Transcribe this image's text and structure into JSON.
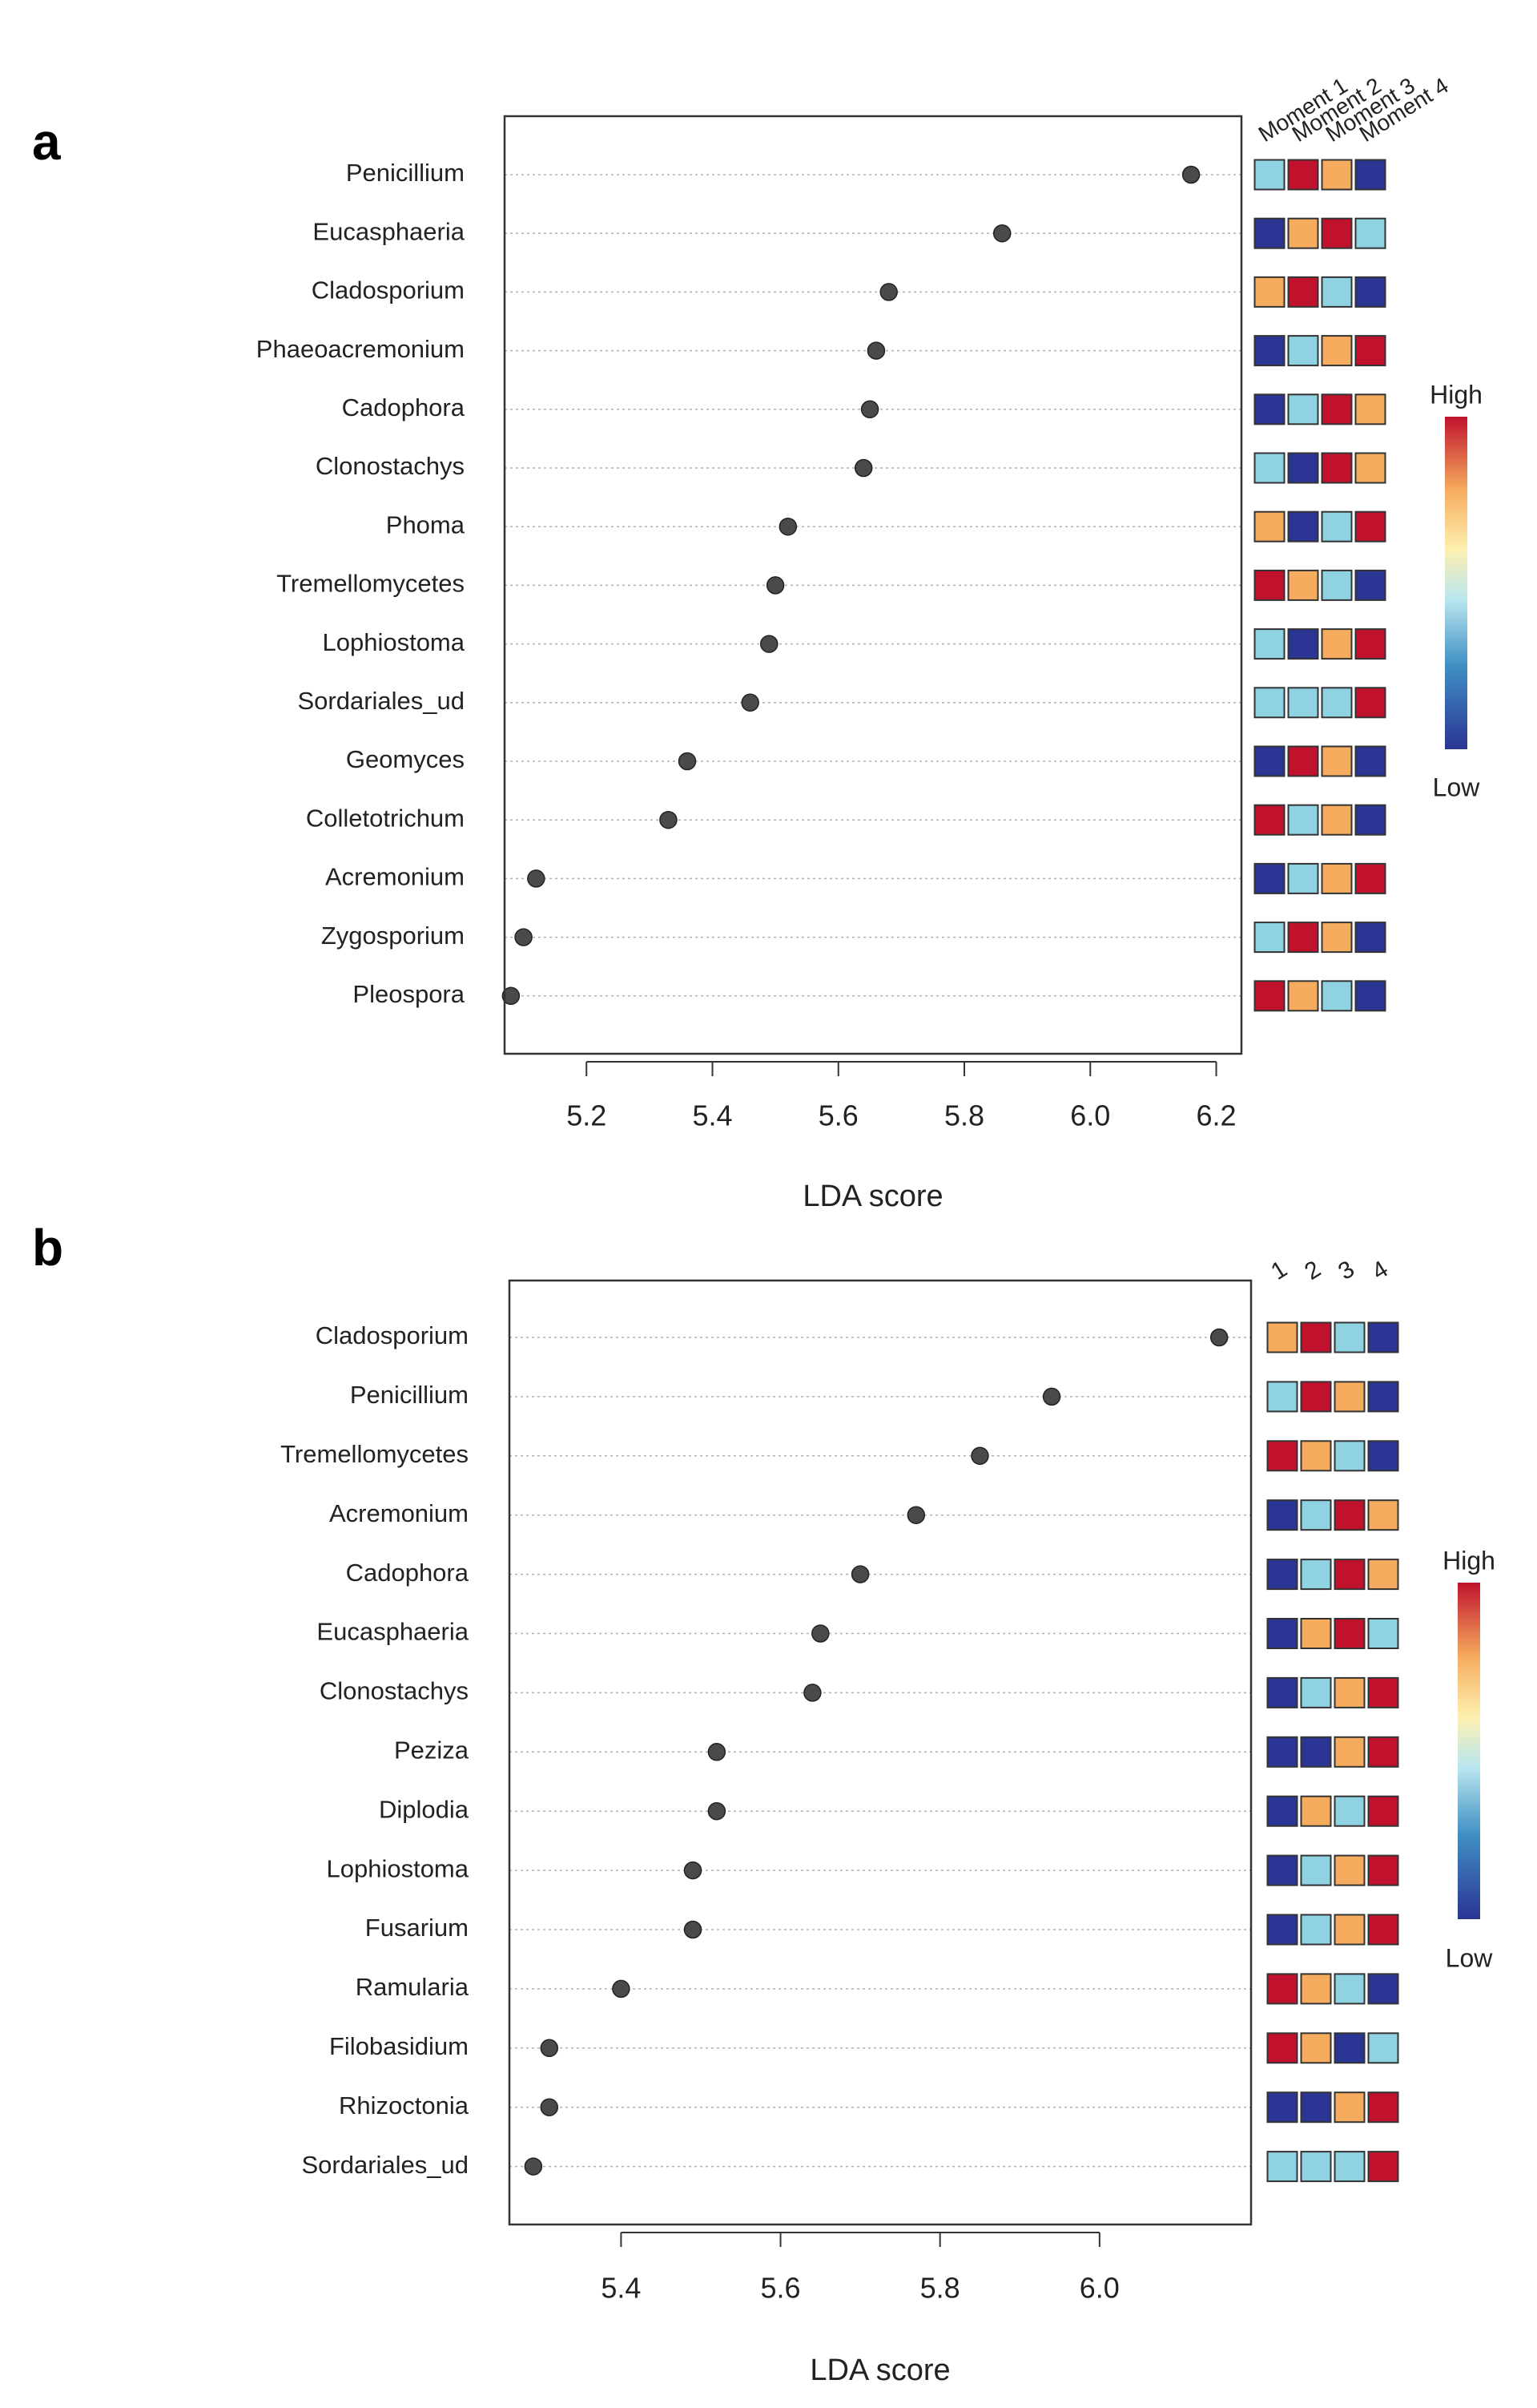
{
  "chart_data": [
    {
      "type": "scatter",
      "panel": "a",
      "xlabel": "LDA score",
      "xlim": [
        5.07,
        6.24
      ],
      "xticks": [
        5.2,
        5.4,
        5.6,
        5.8,
        6.0,
        6.2
      ],
      "xtick_labels": [
        "5.2",
        "5.4",
        "5.6",
        "5.8",
        "6.0",
        "6.2"
      ],
      "categories": [
        "Penicillium",
        "Eucasphaeria",
        "Cladosporium",
        "Phaeoacremonium",
        "Cadophora",
        "Clonostachys",
        "Phoma",
        "Tremellomycetes",
        "Lophiostoma",
        "Sordariales_ud",
        "Geomyces",
        "Colletotrichum",
        "Acremonium",
        "Zygosporium",
        "Pleospora"
      ],
      "values": [
        6.16,
        5.86,
        5.68,
        5.66,
        5.65,
        5.64,
        5.52,
        5.5,
        5.49,
        5.46,
        5.36,
        5.33,
        5.12,
        5.1,
        5.08
      ],
      "heatmap_columns": [
        "Moment 1",
        "Moment 2",
        "Moment 3",
        "Moment 4"
      ],
      "heatmap_levels": [
        [
          2,
          4,
          3,
          1
        ],
        [
          1,
          3,
          4,
          2
        ],
        [
          3,
          4,
          2,
          1
        ],
        [
          1,
          2,
          3,
          4
        ],
        [
          1,
          2,
          4,
          3
        ],
        [
          2,
          1,
          4,
          3
        ],
        [
          3,
          1,
          2,
          4
        ],
        [
          4,
          3,
          2,
          1
        ],
        [
          2,
          1,
          3,
          4
        ],
        [
          2,
          2,
          2,
          4
        ],
        [
          1,
          4,
          3,
          1
        ],
        [
          4,
          2,
          3,
          1
        ],
        [
          1,
          2,
          3,
          4
        ],
        [
          2,
          4,
          3,
          1
        ],
        [
          4,
          3,
          2,
          1
        ]
      ],
      "color_legend": {
        "high": "High",
        "low": "Low"
      }
    },
    {
      "type": "scatter",
      "panel": "b",
      "xlabel": "LDA score",
      "xlim": [
        5.26,
        6.19
      ],
      "xticks": [
        5.4,
        5.6,
        5.8,
        6.0
      ],
      "xtick_labels": [
        "5.4",
        "5.6",
        "5.8",
        "6.0"
      ],
      "categories": [
        "Cladosporium",
        "Penicillium",
        "Tremellomycetes",
        "Acremonium",
        "Cadophora",
        "Eucasphaeria",
        "Clonostachys",
        "Peziza",
        "Diplodia",
        "Lophiostoma",
        "Fusarium",
        "Ramularia",
        "Filobasidium",
        "Rhizoctonia",
        "Sordariales_ud"
      ],
      "values": [
        6.15,
        5.94,
        5.85,
        5.77,
        5.7,
        5.65,
        5.64,
        5.52,
        5.52,
        5.49,
        5.49,
        5.4,
        5.31,
        5.31,
        5.29
      ],
      "heatmap_columns": [
        "1",
        "2",
        "3",
        "4"
      ],
      "heatmap_levels": [
        [
          3,
          4,
          2,
          1
        ],
        [
          2,
          4,
          3,
          1
        ],
        [
          4,
          3,
          2,
          1
        ],
        [
          1,
          2,
          4,
          3
        ],
        [
          1,
          2,
          4,
          3
        ],
        [
          1,
          3,
          4,
          2
        ],
        [
          1,
          2,
          3,
          4
        ],
        [
          1,
          1,
          3,
          4
        ],
        [
          1,
          3,
          2,
          4
        ],
        [
          1,
          2,
          3,
          4
        ],
        [
          1,
          2,
          3,
          4
        ],
        [
          4,
          3,
          2,
          1
        ],
        [
          4,
          3,
          1,
          2
        ],
        [
          1,
          1,
          3,
          4
        ],
        [
          2,
          2,
          2,
          4
        ]
      ],
      "color_legend": {
        "high": "High",
        "low": "Low"
      }
    }
  ],
  "panel_letters": [
    "a",
    "b"
  ],
  "colors": {
    "level_1": "#2b3594",
    "level_2": "#8fd3e3",
    "level_3": "#f6ac5e",
    "level_4": "#c0122d",
    "point": "#4a4a4a",
    "grid": "#b0b0b0"
  }
}
